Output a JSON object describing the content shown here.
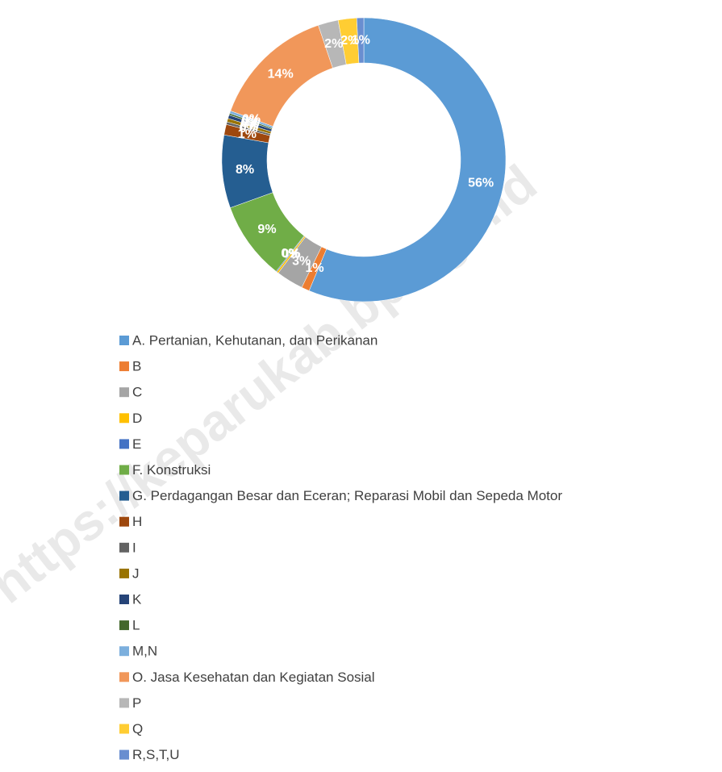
{
  "chart_data": {
    "type": "donut",
    "categories": [
      "A. Pertanian, Kehutanan, dan Perikanan",
      "B",
      "C",
      "D",
      "E",
      "F. Konstruksi",
      "G. Perdagangan Besar dan Eceran; Reparasi Mobil dan Sepeda Motor",
      "H",
      "I",
      "J",
      "K",
      "L",
      "M,N",
      "O. Jasa Kesehatan dan Kegiatan Sosial",
      "P",
      "Q",
      "R,S,T,U"
    ],
    "values": [
      56.3,
      0.9,
      3.1,
      0.2,
      0.1,
      8.9,
      8.3,
      1.2,
      0.3,
      0.4,
      0.4,
      0.2,
      0.3,
      14.2,
      2.3,
      2.1,
      0.8
    ],
    "value_labels": [
      "56%",
      "1%",
      "3%",
      "0%",
      "0%",
      "9%",
      "8%",
      "1%",
      "0%",
      "0%",
      "0%",
      "0%",
      "0%",
      "14%",
      "2%",
      "2%",
      "1%"
    ],
    "colors": [
      "#5b9bd5",
      "#ed7d31",
      "#a5a5a5",
      "#ffc000",
      "#4472c4",
      "#70ad47",
      "#255e91",
      "#9e480e",
      "#636363",
      "#997300",
      "#264478",
      "#43682b",
      "#7cafdd",
      "#f1975a",
      "#b7b7b7",
      "#ffcd33",
      "#698ed0"
    ],
    "legend": "bottom",
    "watermark": "https://keparukab.bps.go.id"
  }
}
